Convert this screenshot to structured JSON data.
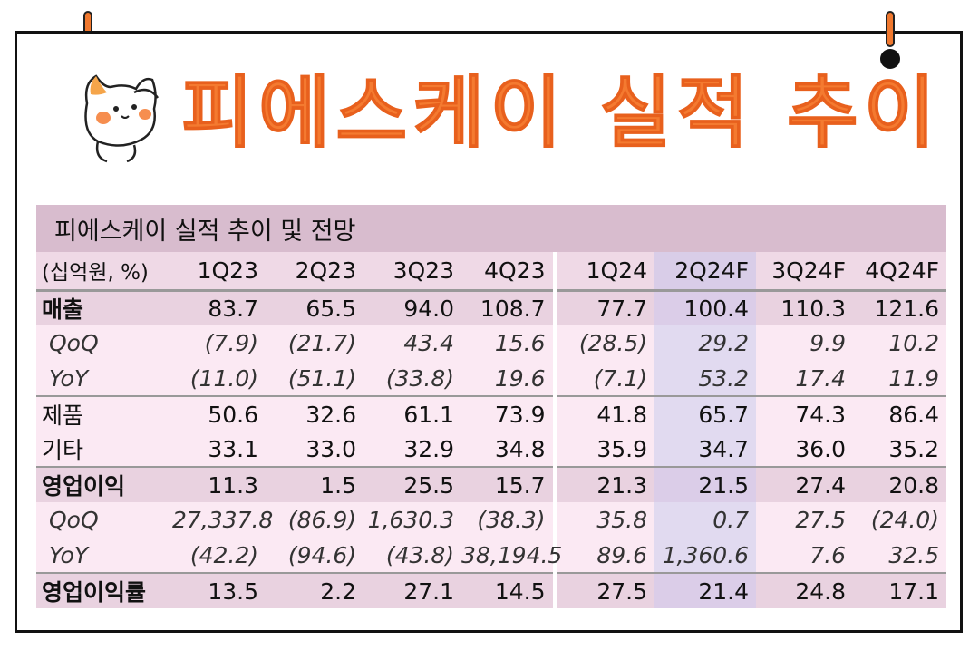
{
  "title": "피에스케이 실적 추이",
  "table": {
    "caption": "피에스케이 실적 추이 및 전망",
    "unit_label": "(십억원, %)",
    "columns": [
      "1Q23",
      "2Q23",
      "3Q23",
      "4Q23",
      "1Q24",
      "2Q24F",
      "3Q24F",
      "4Q24F"
    ],
    "rows": [
      {
        "label": "매출",
        "style": "main",
        "values": [
          "83.7",
          "65.5",
          "94.0",
          "108.7",
          "77.7",
          "100.4",
          "110.3",
          "121.6"
        ]
      },
      {
        "label": "QoQ",
        "style": "sub",
        "values": [
          "(7.9)",
          "(21.7)",
          "43.4",
          "15.6",
          "(28.5)",
          "29.2",
          "9.9",
          "10.2"
        ]
      },
      {
        "label": "YoY",
        "style": "sub",
        "values": [
          "(11.0)",
          "(51.1)",
          "(33.8)",
          "19.6",
          "(7.1)",
          "53.2",
          "17.4",
          "11.9"
        ]
      },
      {
        "label": "제품",
        "style": "plain",
        "values": [
          "50.6",
          "32.6",
          "61.1",
          "73.9",
          "41.8",
          "65.7",
          "74.3",
          "86.4"
        ]
      },
      {
        "label": "기타",
        "style": "plain",
        "values": [
          "33.1",
          "33.0",
          "32.9",
          "34.8",
          "35.9",
          "34.7",
          "36.0",
          "35.2"
        ]
      },
      {
        "label": "영업이익",
        "style": "main",
        "values": [
          "11.3",
          "1.5",
          "25.5",
          "15.7",
          "21.3",
          "21.5",
          "27.4",
          "20.8"
        ]
      },
      {
        "label": "QoQ",
        "style": "sub",
        "values": [
          "27,337.8",
          "(86.9)",
          "1,630.3",
          "(38.3)",
          "35.8",
          "0.7",
          "27.5",
          "(24.0)"
        ]
      },
      {
        "label": "YoY",
        "style": "sub",
        "values": [
          "(42.2)",
          "(94.6)",
          "(43.8)",
          "38,194.5",
          "89.6",
          "1,360.6",
          "7.6",
          "32.5"
        ]
      },
      {
        "label": "영업이익률",
        "style": "main",
        "values": [
          "13.5",
          "2.2",
          "27.1",
          "14.5",
          "27.5",
          "21.4",
          "24.8",
          "17.1"
        ]
      }
    ]
  },
  "colors": {
    "title": "#f47a30",
    "band": "#d8bcce",
    "highlight": "#e1daf0"
  },
  "mascot": "cat-mascot-icon"
}
